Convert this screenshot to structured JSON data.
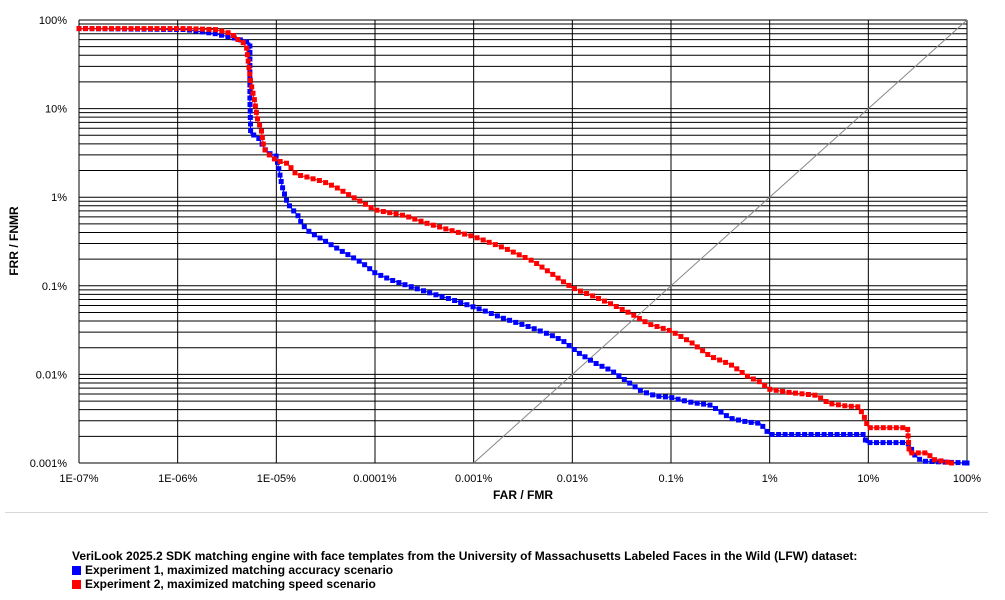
{
  "chart_data": {
    "type": "line",
    "x_scale": "log",
    "y_scale": "log",
    "xlabel": "FAR / FMR",
    "ylabel": "FRR / FNMR",
    "xlim": [
      1e-07,
      100
    ],
    "ylim": [
      0.001,
      100
    ],
    "grid": true,
    "x_ticks": [
      {
        "value": 1e-07,
        "label": "1E-07%"
      },
      {
        "value": 1e-06,
        "label": "1E-06%"
      },
      {
        "value": 1e-05,
        "label": "1E-05%"
      },
      {
        "value": 0.0001,
        "label": "0.0001%"
      },
      {
        "value": 0.001,
        "label": "0.001%"
      },
      {
        "value": 0.01,
        "label": "0.01%"
      },
      {
        "value": 0.1,
        "label": "0.1%"
      },
      {
        "value": 1,
        "label": "1%"
      },
      {
        "value": 10,
        "label": "10%"
      },
      {
        "value": 100,
        "label": "100%"
      }
    ],
    "y_ticks": [
      {
        "value": 100,
        "label": "100%"
      },
      {
        "value": 10,
        "label": "10%"
      },
      {
        "value": 1,
        "label": "1%"
      },
      {
        "value": 0.1,
        "label": "0.1%"
      },
      {
        "value": 0.01,
        "label": "0.01%"
      },
      {
        "value": 0.001,
        "label": "0.001%"
      }
    ],
    "legend_title": "VeriLook 2025.2 SDK matching engine with face templates from the University of Massachusetts Labeled Faces in the Wild (LFW) dataset:",
    "legend_position": "bottom-left",
    "eer_line": true,
    "series": [
      {
        "name": "Experiment 1, maximized matching accuracy scenario",
        "color": "#0000ff",
        "points": [
          [
            1e-07,
            80
          ],
          [
            1.2e-06,
            78
          ],
          [
            2.4e-06,
            70
          ],
          [
            3.9e-06,
            62
          ],
          [
            5.4e-06,
            55
          ],
          [
            5.4e-06,
            12
          ],
          [
            5.5e-06,
            5.2
          ],
          [
            6.5e-06,
            4.8
          ],
          [
            8e-06,
            3.2
          ],
          [
            1e-05,
            2.9
          ],
          [
            1.05e-05,
            2.2
          ],
          [
            1.15e-05,
            1.3
          ],
          [
            1.3e-05,
            0.85
          ],
          [
            1.5e-05,
            0.7
          ],
          [
            1.7e-05,
            0.6
          ],
          [
            1.8e-05,
            0.5
          ],
          [
            2.2e-05,
            0.4
          ],
          [
            3e-05,
            0.33
          ],
          [
            4e-05,
            0.27
          ],
          [
            5.5e-05,
            0.22
          ],
          [
            7.5e-05,
            0.18
          ],
          [
            0.0001,
            0.14
          ],
          [
            0.00015,
            0.115
          ],
          [
            0.00025,
            0.095
          ],
          [
            0.0004,
            0.08
          ],
          [
            0.0006,
            0.07
          ],
          [
            0.0009,
            0.06
          ],
          [
            0.0013,
            0.052
          ],
          [
            0.002,
            0.043
          ],
          [
            0.0035,
            0.035
          ],
          [
            0.006,
            0.028
          ],
          [
            0.008,
            0.024
          ],
          [
            0.012,
            0.017
          ],
          [
            0.018,
            0.013
          ],
          [
            0.025,
            0.011
          ],
          [
            0.035,
            0.0085
          ],
          [
            0.05,
            0.0065
          ],
          [
            0.07,
            0.0057
          ],
          [
            0.1,
            0.0055
          ],
          [
            0.15,
            0.0049
          ],
          [
            0.25,
            0.0045
          ],
          [
            0.4,
            0.0032
          ],
          [
            0.6,
            0.0029
          ],
          [
            0.8,
            0.0028
          ],
          [
            1.0,
            0.0021
          ],
          [
            3.0,
            0.0021
          ],
          [
            9.0,
            0.0021
          ],
          [
            9.5,
            0.0017
          ],
          [
            25,
            0.0017
          ],
          [
            30,
            0.0012
          ],
          [
            35,
            0.00105
          ],
          [
            100,
            0.001
          ]
        ]
      },
      {
        "name": "Experiment 2, maximized matching speed scenario",
        "color": "#ff0000",
        "points": [
          [
            1e-07,
            80
          ],
          [
            1.2e-06,
            80
          ],
          [
            2.4e-06,
            78
          ],
          [
            3.6e-06,
            70
          ],
          [
            3.8e-06,
            62
          ],
          [
            4.5e-06,
            58
          ],
          [
            5e-06,
            48
          ],
          [
            5.5e-06,
            20
          ],
          [
            6e-06,
            12.5
          ],
          [
            6.5e-06,
            7.2
          ],
          [
            7e-06,
            6.0
          ],
          [
            7.5e-06,
            3.5
          ],
          [
            8.5e-06,
            3.0
          ],
          [
            1e-05,
            2.6
          ],
          [
            1.3e-05,
            2.4
          ],
          [
            1.6e-05,
            1.8
          ],
          [
            2e-05,
            1.7
          ],
          [
            3e-05,
            1.5
          ],
          [
            4e-05,
            1.3
          ],
          [
            6e-05,
            1.0
          ],
          [
            0.0001,
            0.72
          ],
          [
            0.0002,
            0.62
          ],
          [
            0.00035,
            0.5
          ],
          [
            0.0006,
            0.42
          ],
          [
            0.001,
            0.36
          ],
          [
            0.002,
            0.27
          ],
          [
            0.004,
            0.19
          ],
          [
            0.006,
            0.14
          ],
          [
            0.01,
            0.095
          ],
          [
            0.016,
            0.077
          ],
          [
            0.025,
            0.062
          ],
          [
            0.04,
            0.048
          ],
          [
            0.06,
            0.037
          ],
          [
            0.1,
            0.031
          ],
          [
            0.16,
            0.023
          ],
          [
            0.25,
            0.016
          ],
          [
            0.4,
            0.013
          ],
          [
            0.6,
            0.0095
          ],
          [
            0.8,
            0.0082
          ],
          [
            1.0,
            0.0068
          ],
          [
            1.5,
            0.0063
          ],
          [
            3.0,
            0.0058
          ],
          [
            4.0,
            0.0047
          ],
          [
            6.0,
            0.0044
          ],
          [
            8.0,
            0.0043
          ],
          [
            9.0,
            0.0034
          ],
          [
            10,
            0.0025
          ],
          [
            25,
            0.0025
          ],
          [
            26,
            0.0013
          ],
          [
            40,
            0.0013
          ],
          [
            45,
            0.0011
          ],
          [
            70,
            0.001
          ]
        ]
      }
    ]
  }
}
